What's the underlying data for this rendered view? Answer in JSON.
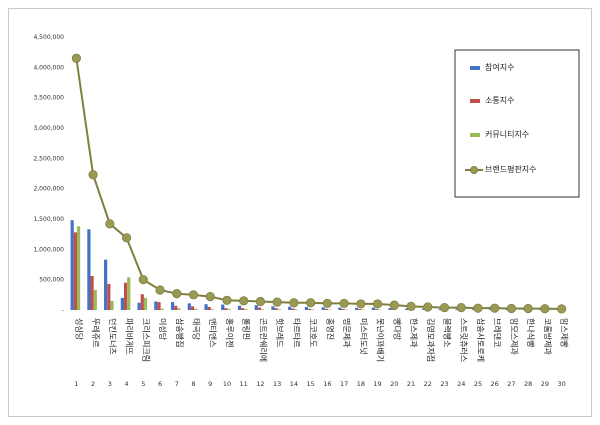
{
  "chart_data": {
    "type": "bar",
    "title": "",
    "xlabel": "",
    "ylabel": "",
    "ylim": [
      0,
      4500000
    ],
    "yticks": [
      "-",
      "500,000",
      "1,000,000",
      "1,500,000",
      "2,000,000",
      "2,500,000",
      "3,000,000",
      "3,500,000",
      "4,000,000",
      "4,500,000"
    ],
    "grid": false,
    "legend_position": "right",
    "categories": [
      "성심당",
      "뚜레쥬르",
      "던킨도너츠",
      "파리바게뜨",
      "크리스피크림",
      "이성당",
      "삼송빵집",
      "태극당",
      "앤티앤스",
      "홍루이젠",
      "롤링핀",
      "곤트란쉐리에",
      "핫브레드",
      "타르타르",
      "코코호도",
      "홍명진",
      "명문제과",
      "미스터도넛",
      "못난이꽈배기",
      "빵다방",
      "한스제과",
      "김영모과자점",
      "블랙빵소",
      "스트릿츄러스",
      "삼송사토로케",
      "브레댄코",
      "맘모스제과",
      "한나식빵",
      "코롬방제과",
      "맘스제빵"
    ],
    "indices": [
      "1",
      "2",
      "3",
      "4",
      "5",
      "6",
      "7",
      "8",
      "9",
      "10",
      "11",
      "12",
      "13",
      "14",
      "15",
      "16",
      "17",
      "18",
      "19",
      "20",
      "21",
      "22",
      "23",
      "24",
      "25",
      "26",
      "27",
      "28",
      "29",
      "30"
    ],
    "series": [
      {
        "name": "참여지수",
        "kind": "bar",
        "color": "#4472c4",
        "values": [
          1480000,
          1330000,
          830000,
          200000,
          120000,
          140000,
          130000,
          110000,
          95000,
          90000,
          70000,
          80000,
          60000,
          55000,
          50000,
          45000,
          40000,
          35000,
          40000,
          30000,
          25000,
          22000,
          20000,
          18000,
          16000,
          14000,
          12000,
          10000,
          9000,
          8000
        ]
      },
      {
        "name": "소통지수",
        "kind": "bar",
        "color": "#c0504d",
        "values": [
          1280000,
          560000,
          430000,
          450000,
          260000,
          130000,
          70000,
          60000,
          50000,
          30000,
          30000,
          40000,
          30000,
          25000,
          20000,
          20000,
          18000,
          15000,
          15000,
          12000,
          10000,
          9000,
          8000,
          7000,
          6000,
          5000,
          5000,
          4000,
          3000,
          3000
        ]
      },
      {
        "name": "커뮤니티지수",
        "kind": "bar",
        "color": "#9bbb59",
        "values": [
          1380000,
          330000,
          150000,
          540000,
          200000,
          20000,
          30000,
          20000,
          15000,
          15000,
          15000,
          10000,
          12000,
          10000,
          10000,
          8000,
          8000,
          8000,
          6000,
          6000,
          5000,
          5000,
          4000,
          4000,
          3000,
          3000,
          3000,
          2000,
          2000,
          2000
        ]
      },
      {
        "name": "브랜드평판지수",
        "kind": "line",
        "color": "#7f7f3f",
        "marker": "#9a9a55",
        "values": [
          4150000,
          2230000,
          1420000,
          1190000,
          500000,
          330000,
          270000,
          250000,
          220000,
          160000,
          150000,
          140000,
          130000,
          120000,
          120000,
          110000,
          110000,
          100000,
          100000,
          80000,
          60000,
          50000,
          40000,
          40000,
          30000,
          30000,
          25000,
          25000,
          20000,
          18000
        ]
      }
    ]
  }
}
